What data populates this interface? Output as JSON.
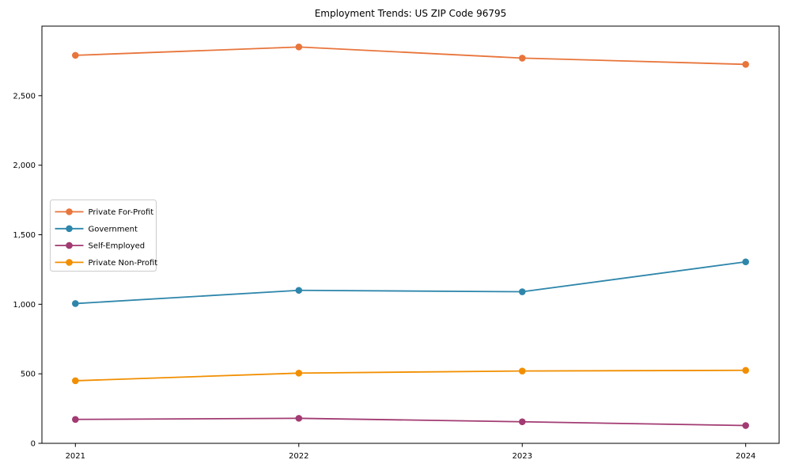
{
  "page": {
    "background_color": "#ffffff",
    "text_color": "#000000"
  },
  "chart_data": {
    "type": "line",
    "title": "Employment Trends: US ZIP Code 96795",
    "xlabel": "",
    "ylabel": "",
    "categories": [
      "2021",
      "2022",
      "2023",
      "2024"
    ],
    "series": [
      {
        "name": "Private For-Profit",
        "color": "#E8753B",
        "values": [
          2790,
          2850,
          2770,
          2725
        ]
      },
      {
        "name": "Government",
        "color": "#2E86AB",
        "values": [
          1005,
          1100,
          1090,
          1305
        ]
      },
      {
        "name": "Self-Employed",
        "color": "#A23B72",
        "values": [
          172,
          180,
          155,
          128
        ]
      },
      {
        "name": "Private Non-Profit",
        "color": "#F18F01",
        "values": [
          450,
          505,
          520,
          525
        ]
      }
    ],
    "ylim": [
      0,
      3000
    ],
    "yticks": [
      0,
      500,
      1000,
      1500,
      2000,
      2500
    ],
    "ytick_labels": [
      "0",
      "500",
      "1,000",
      "1,500",
      "2,000",
      "2,500"
    ],
    "grid": false,
    "marker": "circle",
    "legend": {
      "position": "center-left",
      "border_color": "#cccccc",
      "background_color": "#ffffff",
      "items": [
        "Private For-Profit",
        "Government",
        "Self-Employed",
        "Private Non-Profit"
      ]
    }
  }
}
